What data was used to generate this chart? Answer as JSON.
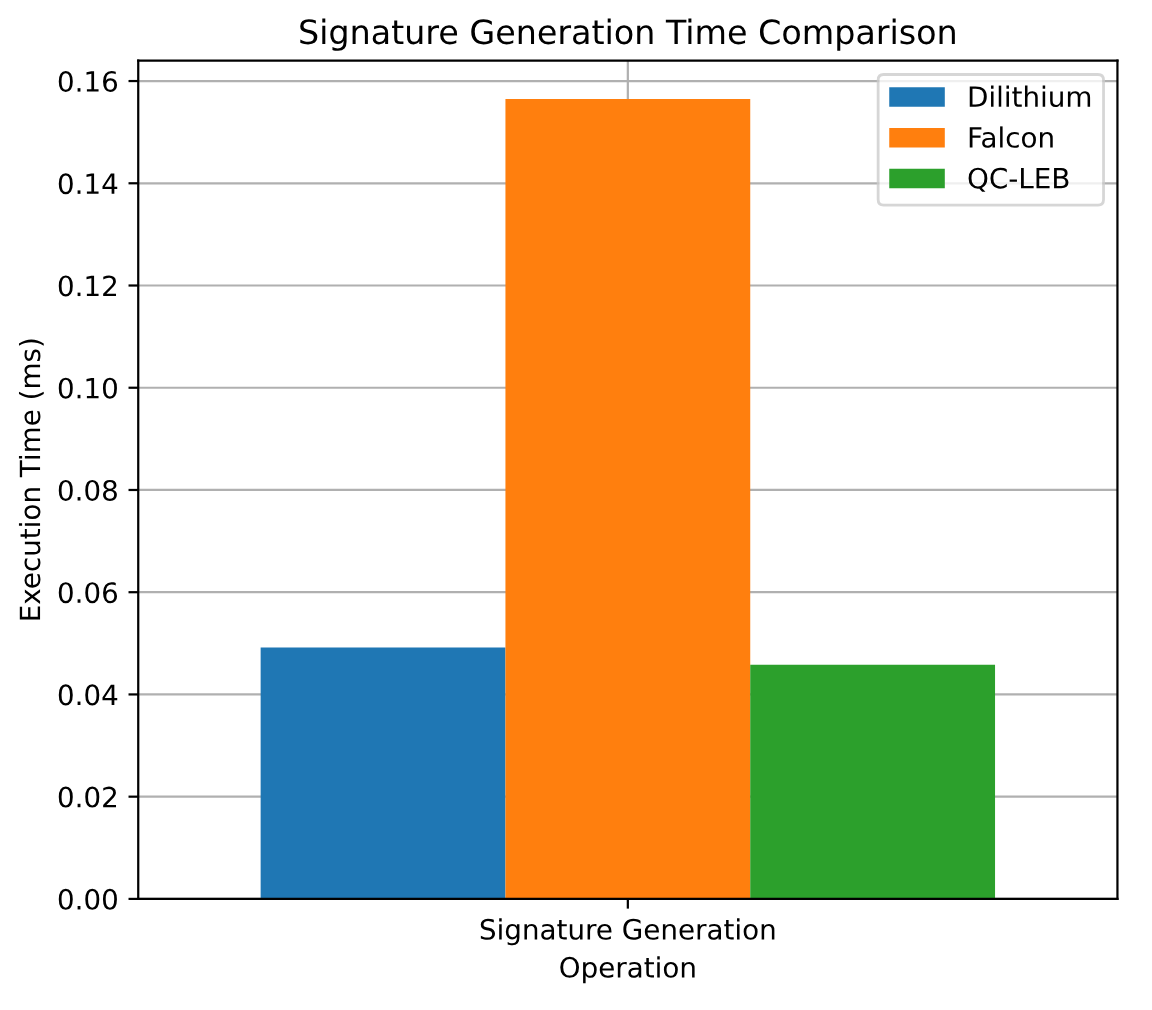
{
  "chart_data": {
    "type": "bar",
    "title": "Signature Generation Time Comparison",
    "xlabel": "Operation",
    "ylabel": "Execution Time (ms)",
    "categories": [
      "Signature Generation"
    ],
    "series": [
      {
        "name": "Dilithium",
        "color": "#1f77b4",
        "values": [
          0.0492
        ]
      },
      {
        "name": "Falcon",
        "color": "#ff7f0e",
        "values": [
          0.1565
        ]
      },
      {
        "name": "QC-LEB",
        "color": "#2ca02c",
        "values": [
          0.0458
        ]
      }
    ],
    "ylim": [
      0,
      0.164
    ],
    "yticks": [
      {
        "value": 0,
        "label": "0.00"
      },
      {
        "value": 0.02,
        "label": "0.02"
      },
      {
        "value": 0.04,
        "label": "0.04"
      },
      {
        "value": 0.06,
        "label": "0.06"
      },
      {
        "value": 0.08,
        "label": "0.08"
      },
      {
        "value": 0.1,
        "label": "0.10"
      },
      {
        "value": 0.12,
        "label": "0.12"
      },
      {
        "value": 0.14,
        "label": "0.14"
      },
      {
        "value": 0.16,
        "label": "0.16"
      }
    ],
    "grid": true,
    "legend": "top right"
  }
}
